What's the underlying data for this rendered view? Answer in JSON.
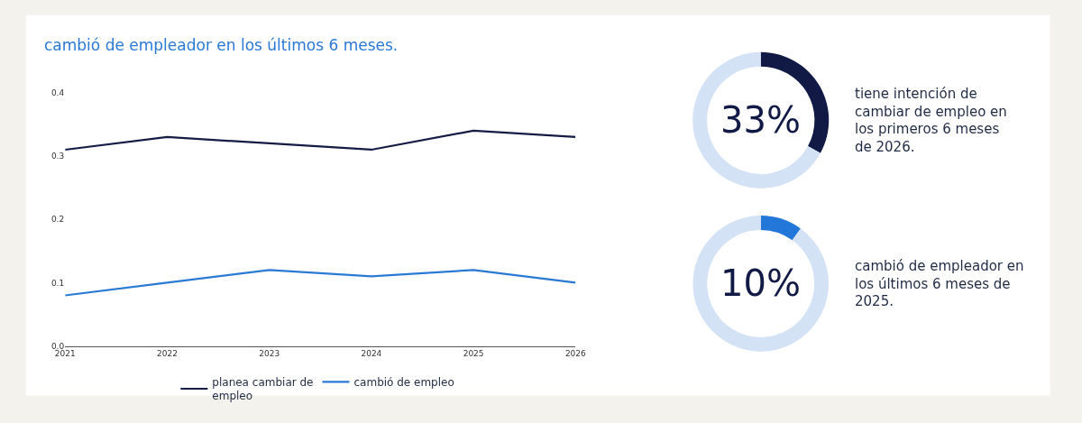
{
  "chart_data": [
    {
      "type": "line",
      "title": "cambió de empleador en los últimos 6 meses.",
      "x": [
        2021,
        2022,
        2023,
        2024,
        2025,
        2026
      ],
      "series": [
        {
          "name": "planea cambiar de empleo",
          "color": "#141c45",
          "values": [
            0.31,
            0.33,
            0.32,
            0.31,
            0.34,
            0.33
          ]
        },
        {
          "name": "cambió de empleo",
          "color": "#2a7ad5",
          "values": [
            0.08,
            0.1,
            0.12,
            0.11,
            0.12,
            0.1
          ]
        }
      ],
      "xlim": [
        2021,
        2026
      ],
      "xticks": [
        2021,
        2022,
        2023,
        2024,
        2025,
        2026
      ],
      "ylim": [
        0,
        0.4
      ],
      "yticks": [
        {
          "value": 0,
          "label": "0.0"
        },
        0.1,
        0.2,
        0.3,
        0.4
      ],
      "grid": false,
      "legend": "bottom",
      "marker": "none",
      "line_style": "solid"
    },
    {
      "type": "donut",
      "categories": [
        null,
        null
      ],
      "values": [
        33,
        67
      ],
      "colors": [
        "#111a45",
        "#d3e2f5"
      ],
      "annotations": [
        "33%",
        "tiene intención de cambiar de empleo en los primeros 6 meses de 2026."
      ]
    },
    {
      "type": "donut",
      "categories": [
        null,
        null
      ],
      "values": [
        10,
        90
      ],
      "colors": [
        "#2277d8",
        "#d3e2f5"
      ],
      "annotations": [
        "10%",
        "cambió de empleador en los últimos 6 meses de 2025."
      ]
    }
  ]
}
